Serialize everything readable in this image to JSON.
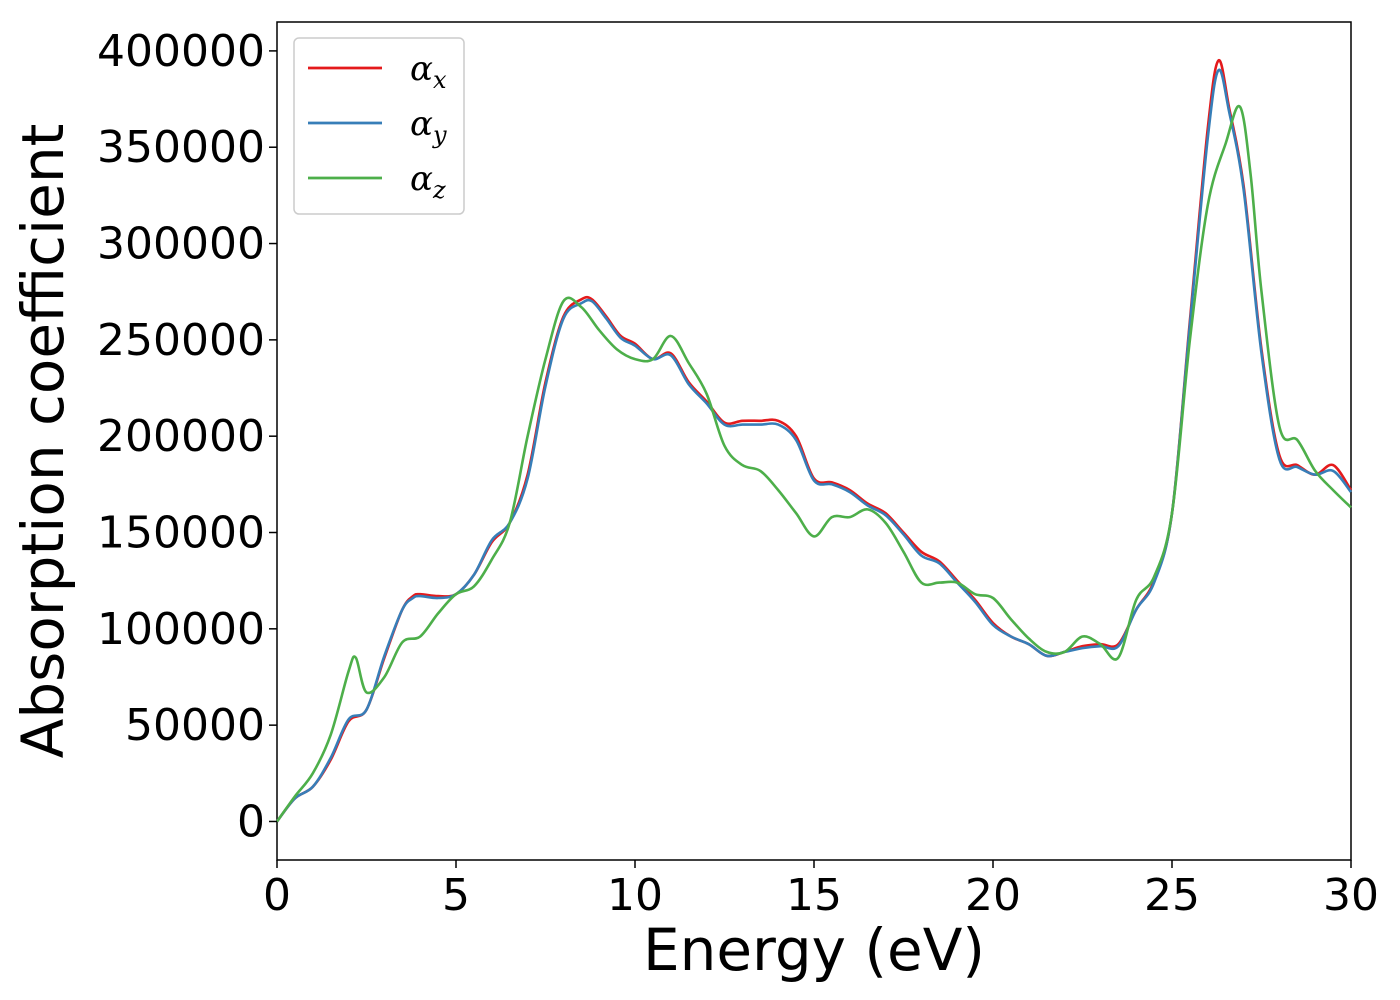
{
  "chart_data": {
    "type": "line",
    "xlabel": "Energy (eV)",
    "ylabel": "Absorption coefficient",
    "xlim": [
      0,
      30
    ],
    "ylim": [
      -20000,
      415000
    ],
    "xticks": [
      0,
      5,
      10,
      15,
      20,
      25,
      30
    ],
    "yticks": [
      0,
      50000,
      100000,
      150000,
      200000,
      250000,
      300000,
      350000,
      400000
    ],
    "grid": false,
    "legend_position": "top-left",
    "series": [
      {
        "name": "αx",
        "symbol": "α",
        "subscript": "x",
        "color": "#e41a1c",
        "x": [
          0,
          0.5,
          1,
          1.5,
          2,
          2.5,
          3,
          3.5,
          3.8,
          4,
          4.5,
          5,
          5.5,
          6,
          6.5,
          7,
          7.5,
          8,
          8.5,
          8.8,
          9.2,
          9.6,
          10,
          10.5,
          11,
          11.5,
          12,
          12.5,
          13,
          13.5,
          14,
          14.5,
          15,
          15.5,
          16,
          16.5,
          17,
          17.5,
          18,
          18.5,
          19,
          19.5,
          20,
          20.5,
          21,
          21.5,
          22,
          22.5,
          23,
          23.5,
          24,
          24.5,
          25,
          25.5,
          26,
          26.3,
          26.6,
          27,
          27.5,
          28,
          28.5,
          29,
          29.5,
          30
        ],
        "y": [
          0,
          12000,
          18000,
          32000,
          52000,
          58000,
          85000,
          110000,
          117000,
          118000,
          117000,
          118000,
          128000,
          145000,
          155000,
          180000,
          228000,
          262000,
          271000,
          271000,
          262000,
          252000,
          248000,
          240000,
          243000,
          228000,
          218000,
          207000,
          208000,
          208000,
          208000,
          200000,
          178000,
          176000,
          172000,
          165000,
          160000,
          150000,
          140000,
          135000,
          125000,
          115000,
          103000,
          96000,
          92000,
          86000,
          88000,
          91000,
          92000,
          92000,
          110000,
          125000,
          160000,
          260000,
          360000,
          395000,
          370000,
          330000,
          245000,
          190000,
          185000,
          180000,
          185000,
          172000
        ]
      },
      {
        "name": "αy",
        "symbol": "α",
        "subscript": "y",
        "color": "#377eb8",
        "x": [
          0,
          0.5,
          1,
          1.5,
          2,
          2.5,
          3,
          3.5,
          3.8,
          4,
          4.5,
          5,
          5.5,
          6,
          6.5,
          7,
          7.5,
          8,
          8.5,
          8.8,
          9.2,
          9.6,
          10,
          10.5,
          11,
          11.5,
          12,
          12.5,
          13,
          13.5,
          14,
          14.5,
          15,
          15.5,
          16,
          16.5,
          17,
          17.5,
          18,
          18.5,
          19,
          19.5,
          20,
          20.5,
          21,
          21.5,
          22,
          22.5,
          23,
          23.5,
          24,
          24.5,
          25,
          25.5,
          26,
          26.3,
          26.6,
          27,
          27.5,
          28,
          28.5,
          29,
          29.5,
          30
        ],
        "y": [
          0,
          12000,
          18000,
          33000,
          53000,
          58000,
          86000,
          110000,
          116000,
          117000,
          116000,
          118000,
          128000,
          146000,
          155000,
          178000,
          226000,
          261000,
          269000,
          270000,
          261000,
          251000,
          247000,
          240000,
          242000,
          227000,
          217000,
          206000,
          206000,
          206000,
          206000,
          198000,
          177000,
          175000,
          171000,
          164000,
          159000,
          149000,
          138000,
          134000,
          124000,
          114000,
          102000,
          96000,
          92000,
          86000,
          88000,
          90000,
          91000,
          91000,
          110000,
          124000,
          160000,
          258000,
          355000,
          390000,
          368000,
          328000,
          243000,
          188000,
          184000,
          180000,
          182000,
          171000
        ]
      },
      {
        "name": "αz",
        "symbol": "α",
        "subscript": "z",
        "color": "#4daf4a",
        "x": [
          0,
          0.5,
          1,
          1.5,
          2,
          2.2,
          2.5,
          3,
          3.5,
          4,
          4.5,
          5,
          5.5,
          6,
          6.5,
          7,
          7.5,
          8,
          8.5,
          9,
          9.5,
          10,
          10.5,
          11,
          11.5,
          12,
          12.5,
          13,
          13.5,
          14,
          14.5,
          15,
          15.5,
          16,
          16.5,
          17,
          17.5,
          18,
          18.5,
          19,
          19.5,
          20,
          20.5,
          21,
          21.5,
          22,
          22.5,
          23,
          23.5,
          24,
          24.5,
          25,
          25.5,
          26,
          26.5,
          26.9,
          27.2,
          27.5,
          28,
          28.5,
          29,
          29.5,
          30
        ],
        "y": [
          0,
          13000,
          25000,
          45000,
          78000,
          85000,
          67000,
          75000,
          93000,
          96000,
          108000,
          118000,
          122000,
          136000,
          155000,
          200000,
          240000,
          270000,
          267000,
          255000,
          245000,
          240000,
          240000,
          252000,
          238000,
          222000,
          195000,
          185000,
          182000,
          172000,
          160000,
          148000,
          158000,
          158000,
          162000,
          155000,
          140000,
          124000,
          124000,
          124000,
          118000,
          116000,
          105000,
          95000,
          88000,
          88000,
          96000,
          92000,
          85000,
          115000,
          127000,
          160000,
          250000,
          320000,
          352000,
          371000,
          335000,
          275000,
          205000,
          198000,
          182000,
          172000,
          163000
        ]
      }
    ]
  }
}
